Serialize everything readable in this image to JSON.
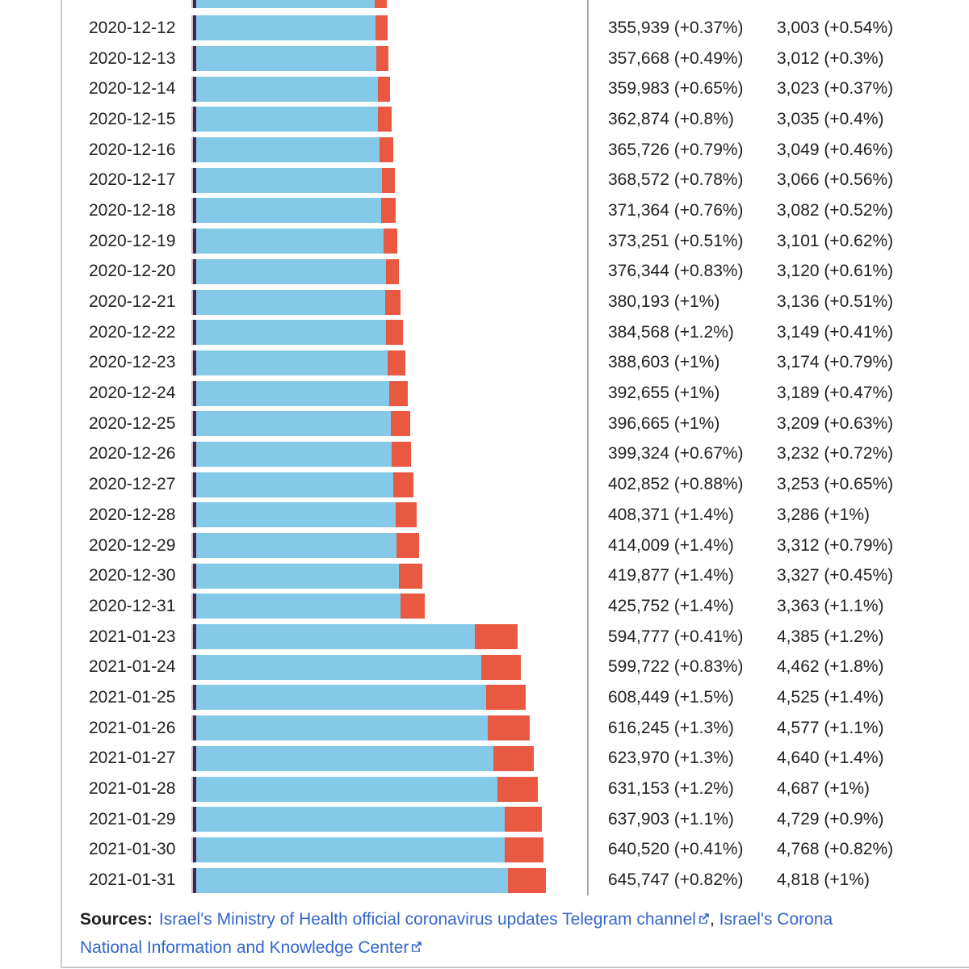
{
  "chart_data": {
    "type": "bar",
    "orientation": "horizontal",
    "stacked": true,
    "title": "",
    "xlabel": "",
    "ylabel": "",
    "legend": "none",
    "gridlines": false,
    "categories": [
      "2020-12-12",
      "2020-12-13",
      "2020-12-14",
      "2020-12-15",
      "2020-12-16",
      "2020-12-17",
      "2020-12-18",
      "2020-12-19",
      "2020-12-20",
      "2020-12-21",
      "2020-12-22",
      "2020-12-23",
      "2020-12-24",
      "2020-12-25",
      "2020-12-26",
      "2020-12-27",
      "2020-12-28",
      "2020-12-29",
      "2020-12-30",
      "2020-12-31",
      "2021-01-23",
      "2021-01-24",
      "2021-01-25",
      "2021-01-26",
      "2021-01-27",
      "2021-01-28",
      "2021-01-29",
      "2021-01-30",
      "2021-01-31"
    ],
    "series": [
      {
        "name": "cumulative_cases",
        "values": [
          355939,
          357668,
          359983,
          362874,
          365726,
          368572,
          371364,
          373251,
          376344,
          380193,
          384568,
          388603,
          392655,
          396665,
          399324,
          402852,
          408371,
          414009,
          419877,
          425752,
          594777,
          599722,
          608449,
          616245,
          623970,
          631153,
          637903,
          640520,
          645747
        ]
      },
      {
        "name": "cumulative_deaths",
        "values": [
          3003,
          3012,
          3023,
          3035,
          3049,
          3066,
          3082,
          3101,
          3120,
          3136,
          3149,
          3174,
          3189,
          3209,
          3232,
          3253,
          3286,
          3312,
          3327,
          3363,
          4385,
          4462,
          4525,
          4577,
          4640,
          4687,
          4729,
          4768,
          4818
        ]
      }
    ],
    "case_change_pct": [
      "+0.37%",
      "+0.49%",
      "+0.65%",
      "+0.8%",
      "+0.79%",
      "+0.78%",
      "+0.76%",
      "+0.51%",
      "+0.83%",
      "+1%",
      "+1.2%",
      "+1%",
      "+1%",
      "+1%",
      "+0.67%",
      "+0.88%",
      "+1.4%",
      "+1.4%",
      "+1.4%",
      "+1.4%",
      "+0.41%",
      "+0.83%",
      "+1.5%",
      "+1.3%",
      "+1.3%",
      "+1.2%",
      "+1.1%",
      "+0.41%",
      "+0.82%"
    ],
    "death_change_pct": [
      "+0.54%",
      "+0.3%",
      "+0.37%",
      "+0.4%",
      "+0.46%",
      "+0.56%",
      "+0.52%",
      "+0.62%",
      "+0.61%",
      "+0.51%",
      "+0.41%",
      "+0.79%",
      "+0.47%",
      "+0.63%",
      "+0.72%",
      "+0.65%",
      "+1%",
      "+0.79%",
      "+0.45%",
      "+1.1%",
      "+1.2%",
      "+1.8%",
      "+1.4%",
      "+1.1%",
      "+1.4%",
      "+1%",
      "+0.9%",
      "+0.82%",
      "+1%"
    ],
    "bar_segment_colors": {
      "deaths": "#372d55",
      "recoveries": "#85c9e8",
      "active": "#e95941"
    }
  },
  "colors": {
    "link_blue": "#3366cc",
    "text": "#202122",
    "bar_recovered": "#85c9e8",
    "bar_active": "#e95941",
    "bar_deaths": "#372d55",
    "chart_axis_pink": "#d9b3c8",
    "table_border": "#c8ccd1",
    "column_divider": "#a2a9b1"
  },
  "top_partial_row": {
    "bar": {
      "deaths": 0.8,
      "recovered": 45.3,
      "active": 3.1
    }
  },
  "rows": [
    {
      "date": "2020-12-12",
      "cases": "355,939 (+0.37%)",
      "deaths": "3,003 (+0.54%)",
      "bar": {
        "deaths": 0.8,
        "recovered": 45.5,
        "active": 3.1
      }
    },
    {
      "date": "2020-12-13",
      "cases": "357,668 (+0.49%)",
      "deaths": "3,012 (+0.3%)",
      "bar": {
        "deaths": 0.8,
        "recovered": 45.7,
        "active": 3.1
      }
    },
    {
      "date": "2020-12-14",
      "cases": "359,983 (+0.65%)",
      "deaths": "3,023 (+0.37%)",
      "bar": {
        "deaths": 0.8,
        "recovered": 46.1,
        "active": 3.1
      }
    },
    {
      "date": "2020-12-15",
      "cases": "362,874 (+0.8%)",
      "deaths": "3,035 (+0.4%)",
      "bar": {
        "deaths": 0.8,
        "recovered": 46.1,
        "active": 3.5
      }
    },
    {
      "date": "2020-12-16",
      "cases": "365,726 (+0.79%)",
      "deaths": "3,049 (+0.46%)",
      "bar": {
        "deaths": 0.8,
        "recovered": 46.5,
        "active": 3.5
      }
    },
    {
      "date": "2020-12-17",
      "cases": "368,572 (+0.78%)",
      "deaths": "3,066 (+0.56%)",
      "bar": {
        "deaths": 0.8,
        "recovered": 47.1,
        "active": 3.3
      }
    },
    {
      "date": "2020-12-18",
      "cases": "371,364 (+0.76%)",
      "deaths": "3,082 (+0.52%)",
      "bar": {
        "deaths": 0.8,
        "recovered": 46.9,
        "active": 3.7
      }
    },
    {
      "date": "2020-12-19",
      "cases": "373,251 (+0.51%)",
      "deaths": "3,101 (+0.62%)",
      "bar": {
        "deaths": 0.8,
        "recovered": 47.6,
        "active": 3.5
      }
    },
    {
      "date": "2020-12-20",
      "cases": "376,344 (+0.83%)",
      "deaths": "3,120 (+0.61%)",
      "bar": {
        "deaths": 0.8,
        "recovered": 48.2,
        "active": 3.3
      }
    },
    {
      "date": "2020-12-21",
      "cases": "380,193 (+1%)",
      "deaths": "3,136 (+0.51%)",
      "bar": {
        "deaths": 0.8,
        "recovered": 48.0,
        "active": 3.9
      }
    },
    {
      "date": "2020-12-22",
      "cases": "384,568 (+1.2%)",
      "deaths": "3,149 (+0.41%)",
      "bar": {
        "deaths": 0.8,
        "recovered": 48.2,
        "active": 4.3
      }
    },
    {
      "date": "2020-12-23",
      "cases": "388,603 (+1%)",
      "deaths": "3,174 (+0.79%)",
      "bar": {
        "deaths": 0.8,
        "recovered": 48.6,
        "active": 4.5
      }
    },
    {
      "date": "2020-12-24",
      "cases": "392,655 (+1%)",
      "deaths": "3,189 (+0.47%)",
      "bar": {
        "deaths": 0.8,
        "recovered": 49.0,
        "active": 4.7
      }
    },
    {
      "date": "2020-12-25",
      "cases": "396,665 (+1%)",
      "deaths": "3,209 (+0.63%)",
      "bar": {
        "deaths": 0.8,
        "recovered": 49.4,
        "active": 4.9
      }
    },
    {
      "date": "2020-12-26",
      "cases": "399,324 (+0.67%)",
      "deaths": "3,232 (+0.72%)",
      "bar": {
        "deaths": 0.8,
        "recovered": 49.6,
        "active": 4.9
      }
    },
    {
      "date": "2020-12-27",
      "cases": "402,852 (+0.88%)",
      "deaths": "3,253 (+0.65%)",
      "bar": {
        "deaths": 0.8,
        "recovered": 50.0,
        "active": 5.1
      }
    },
    {
      "date": "2020-12-28",
      "cases": "408,371 (+1.4%)",
      "deaths": "3,286 (+1%)",
      "bar": {
        "deaths": 0.8,
        "recovered": 50.6,
        "active": 5.3
      }
    },
    {
      "date": "2020-12-29",
      "cases": "414,009 (+1.4%)",
      "deaths": "3,312 (+0.79%)",
      "bar": {
        "deaths": 0.8,
        "recovered": 50.8,
        "active": 5.7
      }
    },
    {
      "date": "2020-12-30",
      "cases": "419,877 (+1.4%)",
      "deaths": "3,327 (+0.45%)",
      "bar": {
        "deaths": 0.8,
        "recovered": 51.4,
        "active": 5.9
      }
    },
    {
      "date": "2020-12-31",
      "cases": "425,752 (+1.4%)",
      "deaths": "3,363 (+1.1%)",
      "bar": {
        "deaths": 0.8,
        "recovered": 51.8,
        "active": 6.3
      }
    },
    {
      "date": "2021-01-23",
      "cases": "594,777 (+0.41%)",
      "deaths": "4,385 (+1.2%)",
      "bar": {
        "deaths": 0.8,
        "recovered": 70.8,
        "active": 10.8
      }
    },
    {
      "date": "2021-01-24",
      "cases": "599,722 (+0.83%)",
      "deaths": "4,462 (+1.8%)",
      "bar": {
        "deaths": 0.8,
        "recovered": 72.4,
        "active": 10.0
      }
    },
    {
      "date": "2021-01-25",
      "cases": "608,449 (+1.5%)",
      "deaths": "4,525 (+1.4%)",
      "bar": {
        "deaths": 0.8,
        "recovered": 73.5,
        "active": 10.2
      }
    },
    {
      "date": "2021-01-26",
      "cases": "616,245 (+1.3%)",
      "deaths": "4,577 (+1.1%)",
      "bar": {
        "deaths": 0.8,
        "recovered": 74.1,
        "active": 10.6
      }
    },
    {
      "date": "2021-01-27",
      "cases": "623,970 (+1.3%)",
      "deaths": "4,640 (+1.4%)",
      "bar": {
        "deaths": 0.8,
        "recovered": 75.5,
        "active": 10.2
      }
    },
    {
      "date": "2021-01-28",
      "cases": "631,153 (+1.2%)",
      "deaths": "4,687 (+1%)",
      "bar": {
        "deaths": 0.8,
        "recovered": 76.5,
        "active": 10.2
      }
    },
    {
      "date": "2021-01-29",
      "cases": "637,903 (+1.1%)",
      "deaths": "4,729 (+0.9%)",
      "bar": {
        "deaths": 0.8,
        "recovered": 78.2,
        "active": 9.6
      }
    },
    {
      "date": "2021-01-30",
      "cases": "640,520 (+0.41%)",
      "deaths": "4,768 (+0.82%)",
      "bar": {
        "deaths": 0.8,
        "recovered": 78.2,
        "active": 10.0
      }
    },
    {
      "date": "2021-01-31",
      "cases": "645,747 (+0.82%)",
      "deaths": "4,818 (+1%)",
      "bar": {
        "deaths": 0.8,
        "recovered": 79.2,
        "active": 9.6
      }
    }
  ],
  "sources": {
    "label": "Sources:",
    "link1": "Israel's Ministry of Health official coronavirus updates Telegram channel",
    "separator": ", ",
    "link2_part1": "Israel's Corona",
    "link2_part2": "National Information and Knowledge Center"
  }
}
